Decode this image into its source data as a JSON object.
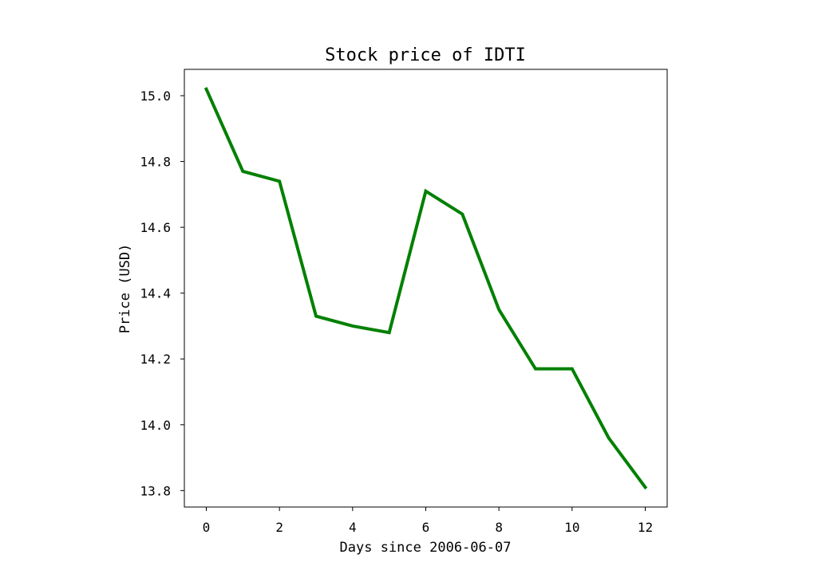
{
  "chart_data": {
    "type": "line",
    "title": "Stock price of IDTI",
    "xlabel": "Days since 2006-06-07",
    "ylabel": "Price (USD)",
    "xlim": [
      -0.6,
      12.6
    ],
    "ylim": [
      13.75,
      15.08
    ],
    "xticks": [
      0,
      2,
      4,
      6,
      8,
      10,
      12
    ],
    "yticks": [
      13.8,
      14.0,
      14.2,
      14.4,
      14.6,
      14.8,
      15.0
    ],
    "ytick_labels": [
      "13.8",
      "14.0",
      "14.2",
      "14.4",
      "14.6",
      "14.8",
      "15.0"
    ],
    "grid": false,
    "series": [
      {
        "color": "#008000",
        "x": [
          0,
          1,
          2,
          3,
          4,
          5,
          6,
          7,
          8,
          9,
          10,
          11,
          12
        ],
        "y": [
          15.02,
          14.77,
          14.74,
          14.33,
          14.3,
          14.28,
          14.71,
          14.64,
          14.35,
          14.17,
          14.17,
          13.96,
          13.81
        ]
      }
    ]
  }
}
